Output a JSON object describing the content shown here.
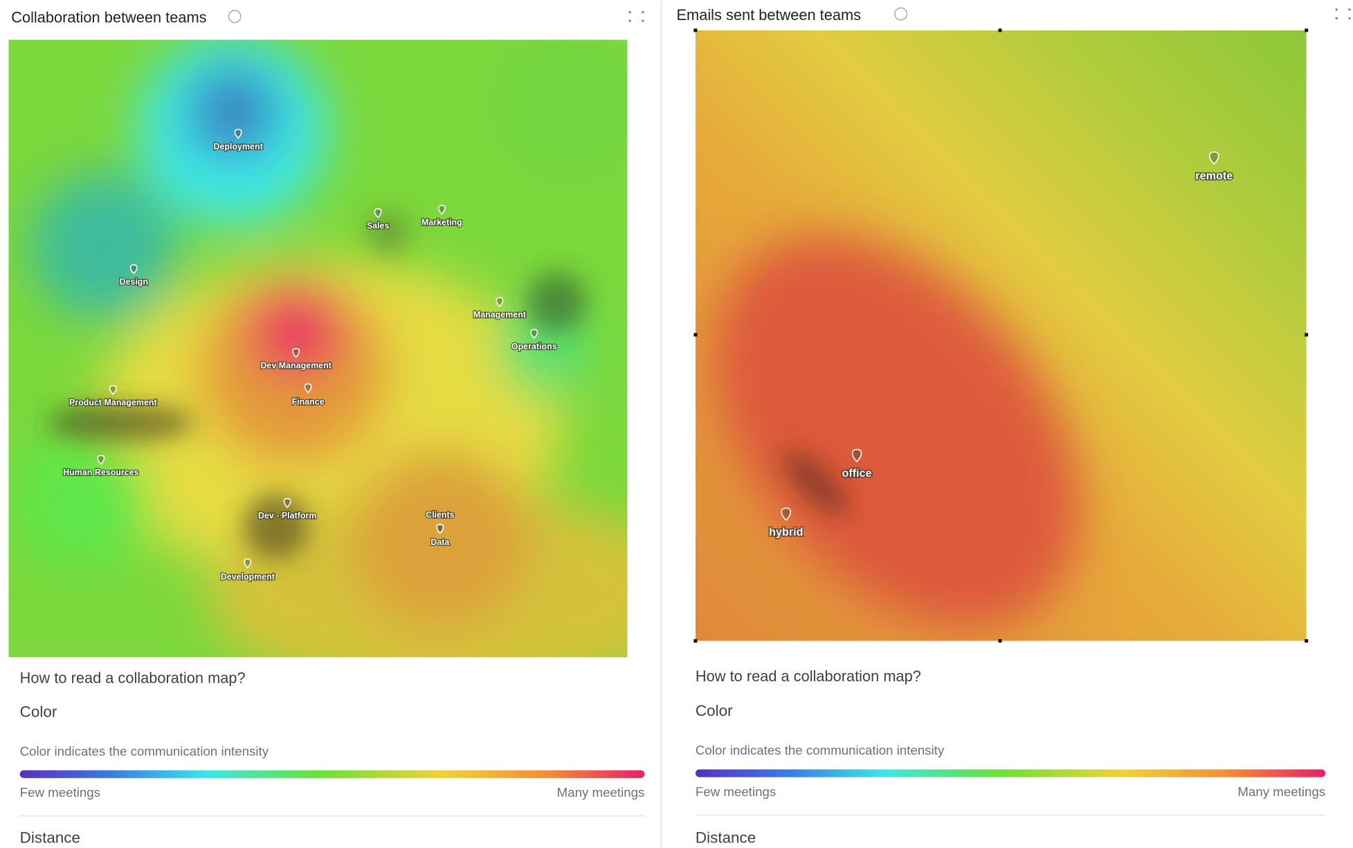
{
  "panels": [
    {
      "title": "Collaboration between teams",
      "nodes": [
        {
          "label": "Deployment"
        },
        {
          "label": "Sales"
        },
        {
          "label": "Marketing"
        },
        {
          "label": "Design"
        },
        {
          "label": "Management"
        },
        {
          "label": "Operations"
        },
        {
          "label": "Dev Management"
        },
        {
          "label": "Product Management"
        },
        {
          "label": "Finance"
        },
        {
          "label": "Human Resources"
        },
        {
          "label": "Dev - Platform"
        },
        {
          "label": "Clients"
        },
        {
          "label": "Data"
        },
        {
          "label": "Development"
        }
      ],
      "help": {
        "heading": "How to read a collaboration map?",
        "section": "Color",
        "description": "Color indicates the communication intensity",
        "low": "Few meetings",
        "high": "Many meetings"
      },
      "next_section": "Distance"
    },
    {
      "title": "Emails sent between teams",
      "nodes": [
        {
          "label": "remote"
        },
        {
          "label": "office"
        },
        {
          "label": "hybrid"
        }
      ],
      "help": {
        "heading": "How to read a collaboration map?",
        "section": "Color",
        "description": "Color indicates the communication intensity",
        "low": "Few meetings",
        "high": "Many meetings"
      },
      "next_section": "Distance"
    }
  ]
}
